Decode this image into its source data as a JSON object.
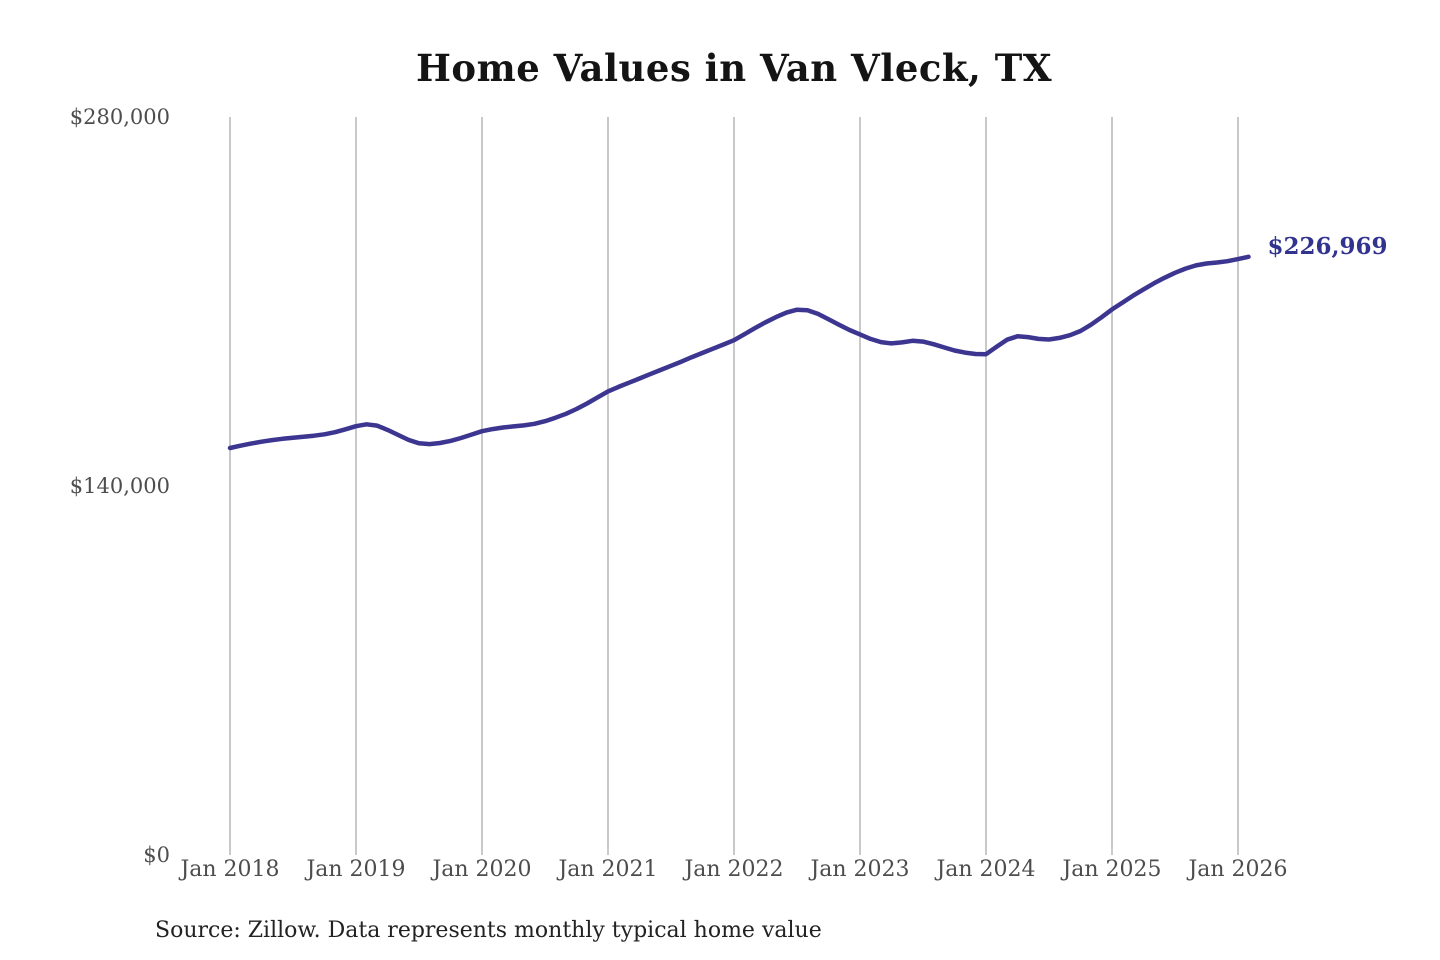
{
  "title": "Home Values in Van Vleck, TX",
  "source_note": "Source: Zillow. Data represents monthly typical home value",
  "annotation": {
    "label": "$226,969"
  },
  "colors": {
    "line": "#3c3691",
    "annotation_text": "#31338f",
    "grid": "#c9c9c9",
    "tick_text": "#4d4d4d",
    "title_text": "#141414",
    "source_text": "#222222",
    "background": "#ffffff"
  },
  "chart_data": {
    "type": "line",
    "title": "Home Values in Van Vleck, TX",
    "xlabel": "",
    "ylabel": "",
    "x_start": "2018-01",
    "x_end": "2026-02",
    "x_tick_labels": [
      "Jan 2018",
      "Jan 2019",
      "Jan 2020",
      "Jan 2021",
      "Jan 2022",
      "Jan 2023",
      "Jan 2024",
      "Jan 2025",
      "Jan 2026"
    ],
    "y_ticks": [
      0,
      140000,
      280000
    ],
    "y_tick_labels": [
      "$0",
      "$140,000",
      "$280,000"
    ],
    "ylim": [
      0,
      280000
    ],
    "grid": "vertical-only",
    "legend": "none",
    "last_value": 226969,
    "series": [
      {
        "name": "monthly-typical-home-value",
        "values": [
          154400,
          155300,
          156100,
          156800,
          157400,
          157900,
          158300,
          158700,
          159100,
          159600,
          160400,
          161500,
          162700,
          163400,
          162900,
          161300,
          159400,
          157500,
          156200,
          155900,
          156300,
          157100,
          158200,
          159500,
          160800,
          161600,
          162200,
          162600,
          163000,
          163600,
          164600,
          165900,
          167400,
          169200,
          171300,
          173600,
          175900,
          177600,
          179200,
          180800,
          182400,
          184000,
          185600,
          187200,
          188900,
          190500,
          192100,
          193700,
          195300,
          197600,
          199900,
          202100,
          204100,
          205800,
          206900,
          206700,
          205300,
          203300,
          201200,
          199200,
          197500,
          195800,
          194600,
          194100,
          194500,
          195100,
          194800,
          193800,
          192600,
          191400,
          190600,
          190100,
          190000,
          192800,
          195500,
          196800,
          196500,
          195800,
          195600,
          196200,
          197200,
          198800,
          201200,
          204000,
          207000,
          209600,
          212200,
          214600,
          216900,
          219000,
          220900,
          222500,
          223700,
          224400,
          224800,
          225300,
          226100,
          226969
        ]
      }
    ]
  }
}
